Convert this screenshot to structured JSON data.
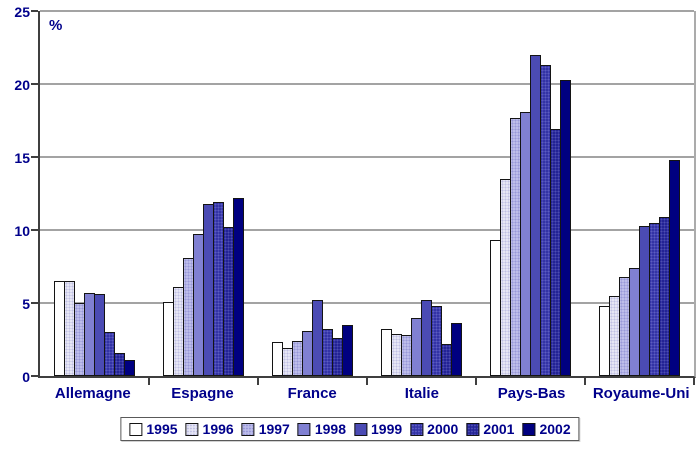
{
  "chart_data": {
    "type": "bar",
    "title": "",
    "xlabel": "",
    "ylabel": "%",
    "ylim": [
      0,
      25
    ],
    "yticks": [
      0,
      5,
      10,
      15,
      20,
      25
    ],
    "grid": true,
    "legend_position": "bottom",
    "categories": [
      "Allemagne",
      "Espagne",
      "France",
      "Italie",
      "Pays-Bas",
      "Royaume-Uni"
    ],
    "series": [
      {
        "name": "1995",
        "color": "#ffffff",
        "pattern": "solid",
        "values": [
          6.5,
          5.1,
          2.3,
          3.2,
          9.3,
          4.8
        ]
      },
      {
        "name": "1996",
        "color": "#e6e6f5",
        "dot_color": "#c0c0e4",
        "pattern": "dots",
        "values": [
          6.5,
          6.1,
          1.9,
          2.9,
          13.5,
          5.5
        ]
      },
      {
        "name": "1997",
        "color": "#bdbdea",
        "dot_color": "#9898d8",
        "pattern": "dots",
        "values": [
          5.0,
          8.1,
          2.4,
          2.8,
          17.7,
          6.8
        ]
      },
      {
        "name": "1998",
        "color": "#8080d2",
        "pattern": "solid",
        "values": [
          5.7,
          9.7,
          3.1,
          4.0,
          18.1,
          7.4
        ]
      },
      {
        "name": "1999",
        "color": "#4b4bb4",
        "pattern": "solid",
        "values": [
          5.6,
          11.8,
          5.2,
          5.2,
          22.0,
          10.3
        ]
      },
      {
        "name": "2000",
        "color": "#3333a6",
        "dot_color": "#5c5cc2",
        "pattern": "dots",
        "values": [
          3.0,
          11.9,
          3.2,
          4.8,
          21.3,
          10.5
        ]
      },
      {
        "name": "2001",
        "color": "#232395",
        "dot_color": "#4d4db2",
        "pattern": "dots",
        "values": [
          1.6,
          10.2,
          2.6,
          2.2,
          16.9,
          10.9
        ]
      },
      {
        "name": "2002",
        "color": "#000080",
        "pattern": "solid",
        "values": [
          1.1,
          12.2,
          3.5,
          3.6,
          20.3,
          14.8
        ]
      }
    ]
  },
  "colors": {
    "text": "#00008b",
    "axis": "#3f3f3f",
    "grid": "#a3a3a3",
    "bar_border": "#141414",
    "background": "#ffffff",
    "legend_border": "#595959"
  }
}
